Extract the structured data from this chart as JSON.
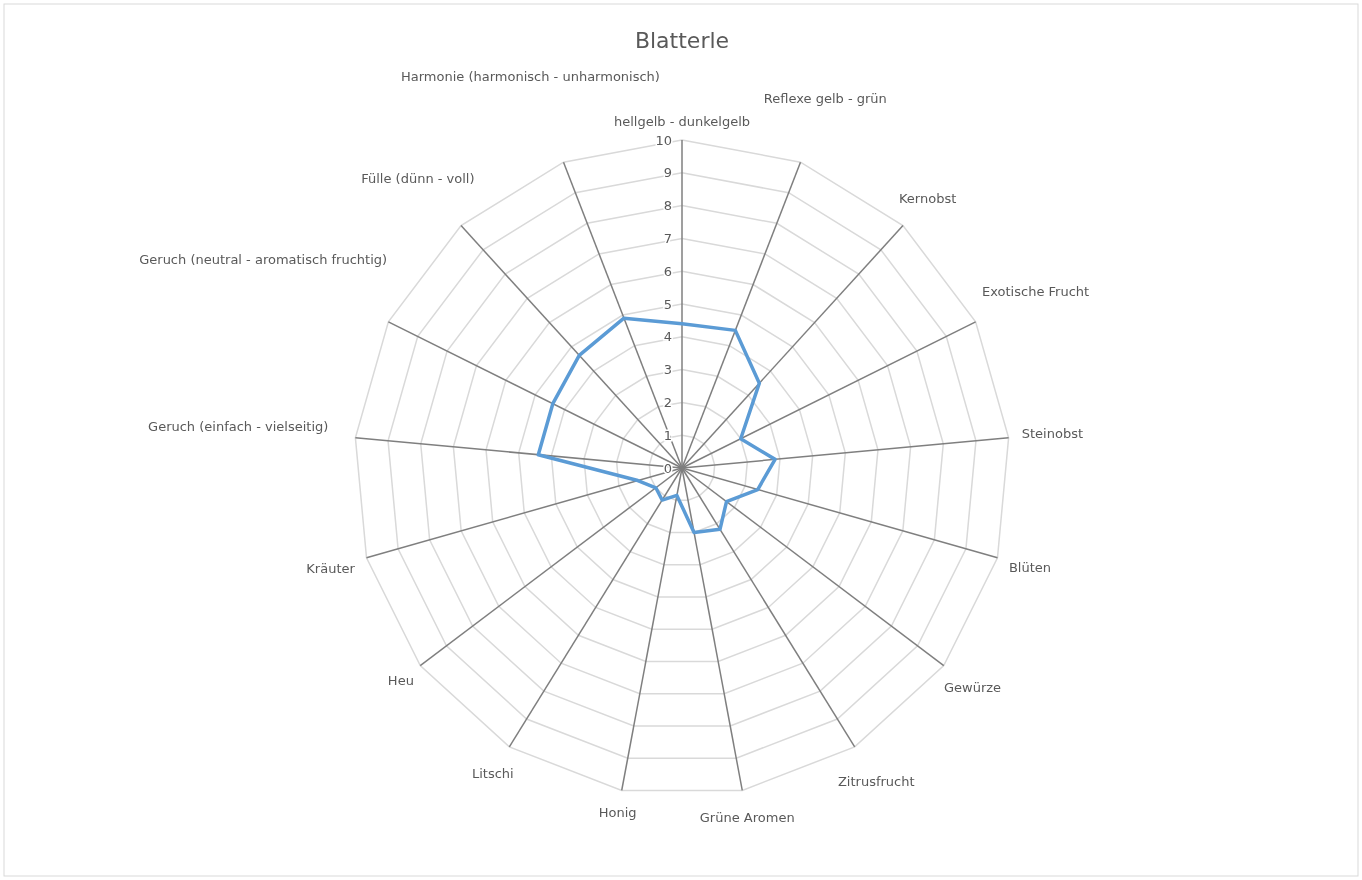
{
  "chart_data": {
    "type": "radar",
    "title": "Blatterle",
    "categories": [
      "hellgelb - dunkelgelb",
      "Reflexe gelb - grün",
      "Kernobst",
      "Exotische Frucht",
      "Steinobst",
      "Blüten",
      "Gewürze",
      "Zitrusfrucht",
      "Grüne Aromen",
      "Honig",
      "Litschi",
      "Heu",
      "Kräuter",
      "Geruch (einfach - vielseitig)",
      "Geruch (neutral - aromatisch fruchtig)",
      "Fülle (dünn - voll)",
      "Harmonie (harmonisch - unharmonisch)"
    ],
    "series": [
      {
        "color": "#5b9bd5",
        "values": [
          4.4,
          4.5,
          3.5,
          2.0,
          2.85,
          2.4,
          1.7,
          2.2,
          2.0,
          0.85,
          1.15,
          1.0,
          1.4,
          4.4,
          4.4,
          4.65,
          4.9
        ]
      }
    ],
    "ylim": [
      0,
      10
    ],
    "yticks": [
      0,
      1,
      2,
      3,
      4,
      5,
      6,
      7,
      8,
      9,
      10
    ],
    "grid": true,
    "marker": "none",
    "line_style": "solid"
  }
}
